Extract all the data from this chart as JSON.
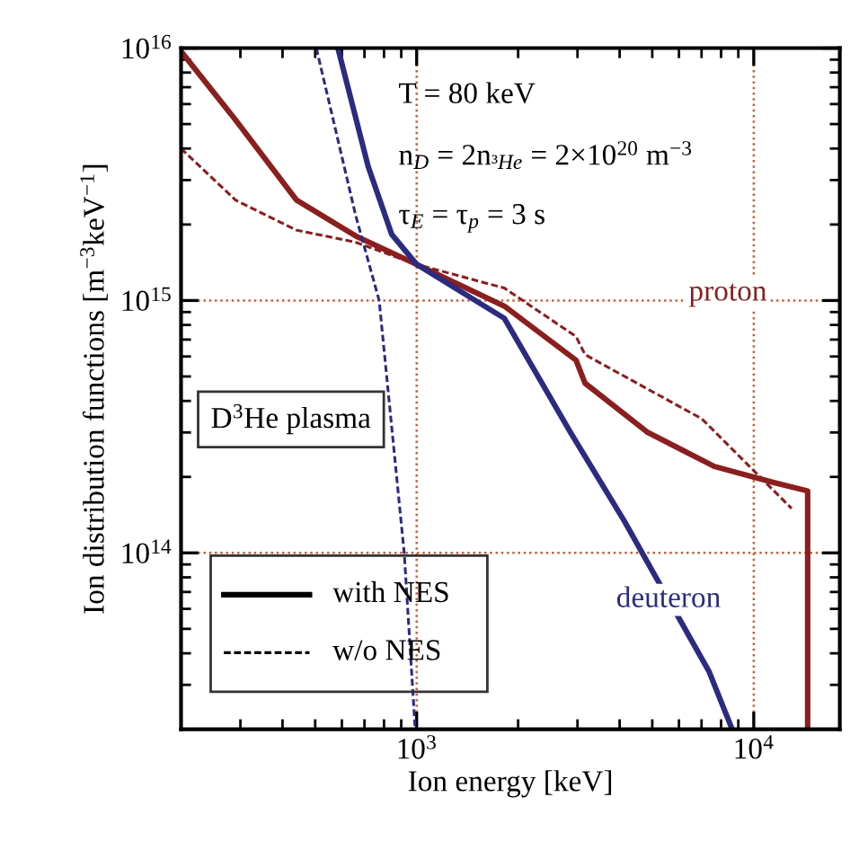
{
  "chart_data": {
    "type": "line",
    "xlabel": "Ion energy [keV]",
    "ylabel": "Ion distribution functions [m$^{−3}$keV$^{−1}$]",
    "log": "xy",
    "xlim": [
      200,
      18000
    ],
    "ylim": [
      20000000000000.0,
      1e+16
    ],
    "xticks": [
      {
        "value": 1000,
        "label": "10$^{3}$"
      },
      {
        "value": 10000,
        "label": "10$^{4}$"
      }
    ],
    "yticks": [
      {
        "value": 100000000000000.0,
        "label": "10$^{14}$"
      },
      {
        "value": 1000000000000000.0,
        "label": "10$^{15}$"
      },
      {
        "value": 1e+16,
        "label": "10$^{16}$"
      }
    ],
    "grid": true,
    "marker": "none",
    "series": [
      {
        "name": "proton",
        "color": "#8b1e1e",
        "line_style": "solid",
        "x": [
          200,
          290,
          440,
          660,
          1000,
          1820,
          2970,
          3160,
          4850,
          7640,
          11460,
          14450,
          14450
        ],
        "values": [
          9700000000000000.0,
          5200000000000000.0,
          2500000000000000.0,
          1800000000000000.0,
          1390000000000000.0,
          950000000000000.0,
          580000000000000.0,
          470000000000000.0,
          300000000000000.0,
          220000000000000.0,
          190000000000000.0,
          176000000000000.0,
          20000000000000.0
        ]
      },
      {
        "color": "#8b1e1e",
        "line_style": "dashed",
        "x": [
          200,
          290,
          440,
          660,
          1000,
          1820,
          2970,
          3160,
          7010,
          12950
        ],
        "values": [
          4000000000000000.0,
          2500000000000000.0,
          1900000000000000.0,
          1700000000000000.0,
          1390000000000000.0,
          1120000000000000.0,
          720000000000000.0,
          610000000000000.0,
          340000000000000.0,
          150000000000000.0
        ]
      },
      {
        "name": "deuteron",
        "color": "#2b2b80",
        "line_style": "solid",
        "x": [
          584,
          718,
          843,
          1000,
          1820,
          2860,
          4140,
          5100,
          7360,
          8630
        ],
        "values": [
          1e+16,
          3400000000000000.0,
          1830000000000000.0,
          1390000000000000.0,
          850000000000000.0,
          300000000000000.0,
          133000000000000.0,
          81000000000000.0,
          34000000000000.0,
          20000000000000.0
        ]
      },
      {
        "color": "#2b2b80",
        "line_style": "dashed",
        "x": [
          504,
          660,
          774,
          919,
          990
        ],
        "values": [
          1e+16,
          2160000000000000.0,
          1000000000000000.0,
          99000000000000.0,
          20000000000000.0
        ]
      }
    ],
    "annotations": [
      "T = 80 keV",
      "n$_{D}$ = 2n$_{³He}$ = 2×10$^{20}$ m$^{−3}$",
      "τ$_{E}$ = τ$_{p}$ = 3 s",
      "D$^{3}$He plasma",
      "with NES",
      "w/o NES"
    ]
  }
}
